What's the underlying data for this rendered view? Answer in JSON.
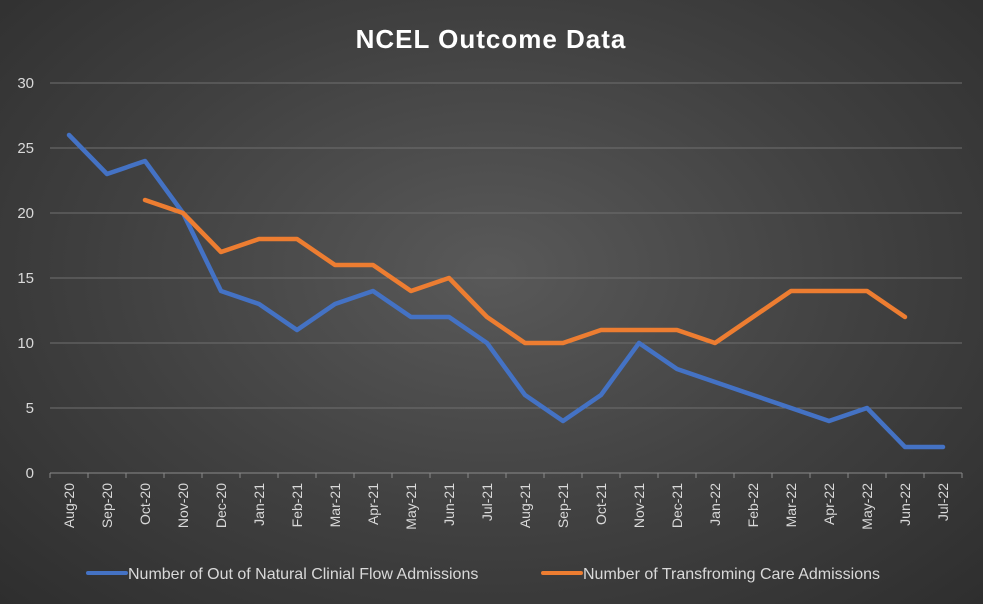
{
  "chart_data": {
    "type": "line",
    "title": "NCEL Outcome Data",
    "xlabel": "",
    "ylabel": "",
    "ylim": [
      0,
      30
    ],
    "yticks": [
      0,
      5,
      10,
      15,
      20,
      25,
      30
    ],
    "categories": [
      "Aug-20",
      "Sep-20",
      "Oct-20",
      "Nov-20",
      "Dec-20",
      "Jan-21",
      "Feb-21",
      "Mar-21",
      "Apr-21",
      "May-21",
      "Jun-21",
      "Jul-21",
      "Aug-21",
      "Sep-21",
      "Oct-21",
      "Nov-21",
      "Dec-21",
      "Jan-22",
      "Feb-22",
      "Mar-22",
      "Apr-22",
      "May-22",
      "Jun-22",
      "Jul-22"
    ],
    "legend_position": "bottom",
    "grid": true,
    "series": [
      {
        "name": "Number of Out of Natural Clinial Flow Admissions",
        "color": "#4472c4",
        "values": [
          26,
          23,
          24,
          20,
          14,
          13,
          11,
          13,
          14,
          12,
          12,
          10,
          6,
          4,
          6,
          10,
          8,
          7,
          6,
          5,
          4,
          5,
          2,
          2
        ]
      },
      {
        "name": "Number of Transfroming Care Admissions",
        "color": "#ed7d31",
        "values": [
          null,
          null,
          21,
          20,
          17,
          18,
          18,
          16,
          16,
          14,
          15,
          12,
          10,
          10,
          11,
          11,
          11,
          10,
          12,
          14,
          14,
          14,
          12,
          null
        ]
      }
    ]
  }
}
